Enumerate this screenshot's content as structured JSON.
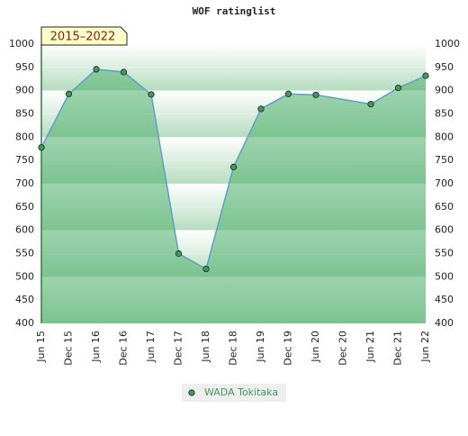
{
  "chart_data": {
    "type": "line",
    "title": "WOF ratinglist",
    "annotation": "2015–2022",
    "categories": [
      "Jun 15",
      "Dec 15",
      "Jun 16",
      "Dec 16",
      "Jun 17",
      "Dec 17",
      "Jun 18",
      "Dec 18",
      "Jun 19",
      "Dec 19",
      "Jun 20",
      "Dec 20",
      "Jun 21",
      "Dec 21",
      "Jun 22"
    ],
    "series": [
      {
        "name": "WADA Tokitaka",
        "color": "#5aa0c8",
        "marker_color": "#3f9a5a",
        "x": [
          "Jun 15",
          "Dec 15",
          "Jun 16",
          "Dec 16",
          "Jun 17",
          "Dec 17",
          "Jun 18",
          "Dec 18",
          "Jun 19",
          "Dec 19",
          "Jun 20",
          "Jun 21",
          "Dec 21",
          "Jun 22"
        ],
        "values": [
          778,
          893,
          946,
          940,
          892,
          550,
          517,
          736,
          861,
          893,
          891,
          871,
          906,
          932
        ]
      }
    ],
    "ylim": [
      400,
      1000
    ],
    "yticks": [
      400,
      450,
      500,
      550,
      600,
      650,
      700,
      750,
      800,
      850,
      900,
      950,
      1000
    ]
  }
}
